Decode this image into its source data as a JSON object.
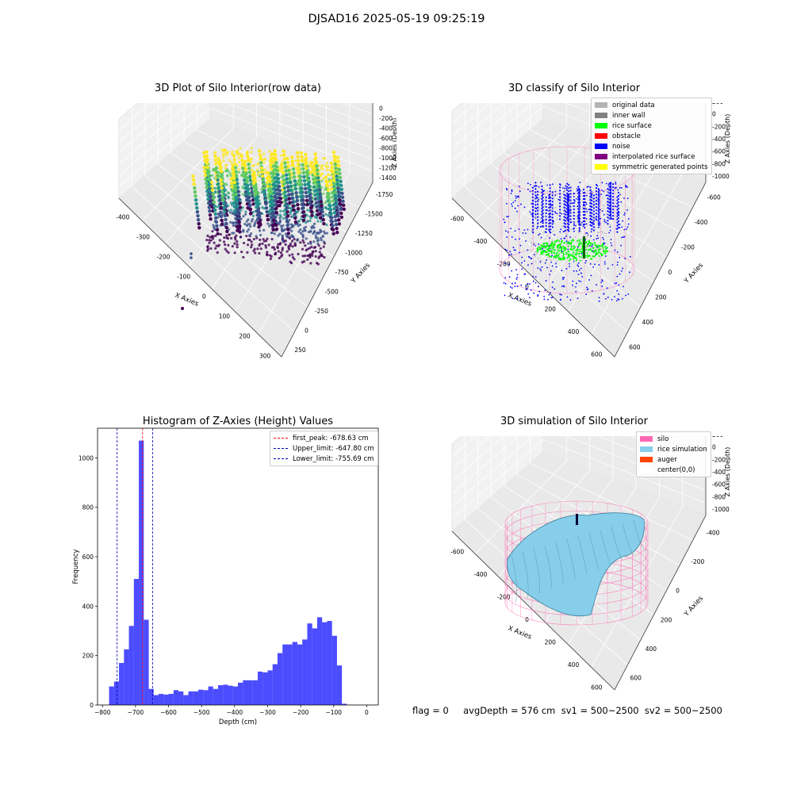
{
  "figure": {
    "suptitle": "DJSAD16 2025-05-19 09:25:19"
  },
  "chart_data": [
    {
      "type": "scatter",
      "title": "3D Plot of Silo Interior(row data)",
      "xlabel": "X Axies",
      "ylabel": "Y Axies",
      "zlabel": "Z Axies (Depth)",
      "xticks": [
        "-400",
        "-300",
        "-200",
        "-100",
        "0",
        "100",
        "200",
        "300"
      ],
      "yticks": [
        "250",
        "0",
        "-250",
        "-500",
        "-750",
        "-1000",
        "-1250",
        "-1500",
        "-1750"
      ],
      "zticks": [
        "0",
        "-200",
        "-400",
        "-600",
        "-800",
        "-1000",
        "-1200",
        "-1400"
      ],
      "colormap": "viridis"
    },
    {
      "type": "scatter",
      "title": "3D classify of Silo Interior",
      "xlabel": "X Axies",
      "ylabel": "Y Axies",
      "zlabel": "Z Axies (Depth)",
      "xticks": [
        "-600",
        "-400",
        "-200",
        "0",
        "200",
        "400",
        "600"
      ],
      "yticks": [
        "600",
        "400",
        "200",
        "0",
        "-200",
        "-400",
        "-600"
      ],
      "zticks": [
        "200",
        "0",
        "-200",
        "-400",
        "-600",
        "-800",
        "-1000"
      ],
      "legend_position": "top-right",
      "legend": [
        {
          "label": "original data",
          "color": "#b3b3b3"
        },
        {
          "label": "inner wall",
          "color": "#808080"
        },
        {
          "label": "rice surface",
          "color": "#00ff00"
        },
        {
          "label": "obstacle",
          "color": "#ff0000"
        },
        {
          "label": "noise",
          "color": "#0000ff"
        },
        {
          "label": "interpolated rice surface",
          "color": "#800080"
        },
        {
          "label": "symmetric generated points",
          "color": "#ffff00"
        }
      ]
    },
    {
      "type": "bar",
      "title": "Histogram of Z-Axies (Height) Values",
      "xlabel": "Depth (cm)",
      "ylabel": "Frequency",
      "xlim": [
        -815,
        35
      ],
      "ylim": [
        0,
        1120
      ],
      "xticks": [
        -800,
        -700,
        -600,
        -500,
        -400,
        -300,
        -200,
        -100,
        0
      ],
      "yticks": [
        0,
        200,
        400,
        600,
        800,
        1000
      ],
      "bin_start": -780,
      "bin_width": 15,
      "values": [
        75,
        95,
        170,
        225,
        320,
        510,
        1070,
        345,
        65,
        40,
        45,
        42,
        45,
        60,
        55,
        40,
        55,
        55,
        62,
        60,
        75,
        65,
        80,
        82,
        78,
        75,
        90,
        100,
        100,
        100,
        135,
        132,
        140,
        165,
        210,
        245,
        245,
        255,
        245,
        265,
        330,
        310,
        355,
        335,
        340,
        280,
        160,
        5
      ],
      "bar_color": "#0000ff",
      "legend_position": "top-right",
      "lines": [
        {
          "label": "first_peak: -678.63 cm",
          "x": -678.63,
          "color": "#ff0000"
        },
        {
          "label": "Upper_limit: -647.80 cm",
          "x": -647.8,
          "color": "#0000aa"
        },
        {
          "label": "Lower_limit: -755.69 cm",
          "x": -755.69,
          "color": "#0000aa"
        }
      ]
    },
    {
      "type": "area",
      "title": "3D simulation of Silo Interior",
      "xlabel": "X Axies",
      "ylabel": "Y Axies",
      "zlabel": "Z Axies (Depth)",
      "xticks": [
        "-600",
        "-400",
        "-200",
        "0",
        "200",
        "400",
        "600"
      ],
      "yticks": [
        "600",
        "400",
        "200",
        "0",
        "-200",
        "-400"
      ],
      "zticks": [
        "200",
        "0",
        "-200",
        "-400",
        "-600",
        "-800",
        "-1000"
      ],
      "legend_position": "top-right",
      "legend": [
        {
          "label": "silo",
          "color": "#ff69b4"
        },
        {
          "label": "rice simulation",
          "color": "#87ceeb"
        },
        {
          "label": "auger",
          "color": "#ff4500"
        },
        {
          "label": "center(0,0)",
          "color": "#ffffff"
        }
      ]
    }
  ],
  "footer": {
    "text": "flag = 0     avgDepth = 576 cm  sv1 = 500~2500  sv2 = 500~2500"
  }
}
